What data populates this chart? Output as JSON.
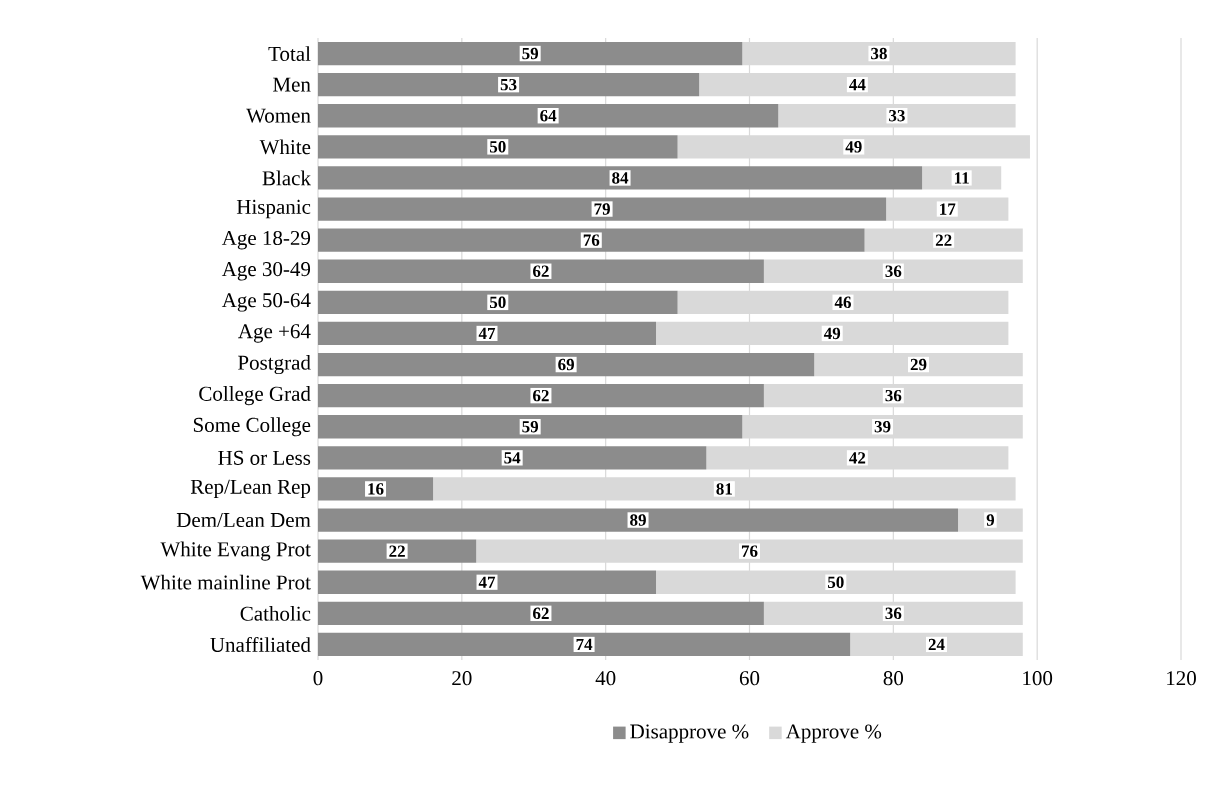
{
  "chart_data": {
    "type": "bar",
    "orientation": "horizontal",
    "stacked": true,
    "categories": [
      "Total",
      "Men",
      "Women",
      "White",
      "Black",
      "Hispanic",
      "Age 18-29",
      "Age 30-49",
      "Age 50-64",
      "Age +64",
      "Postgrad",
      "College Grad",
      "Some College",
      "HS or Less",
      "Rep/Lean Rep",
      "Dem/Lean Dem",
      "White Evang Prot",
      "White mainline Prot",
      "Catholic",
      "Unaffiliated"
    ],
    "series": [
      {
        "name": "Disapprove %",
        "color": "#8c8c8c",
        "values": [
          59,
          53,
          64,
          50,
          84,
          79,
          76,
          62,
          50,
          47,
          69,
          62,
          59,
          54,
          16,
          89,
          22,
          47,
          62,
          74
        ]
      },
      {
        "name": "Approve %",
        "color": "#d9d9d9",
        "values": [
          38,
          44,
          33,
          49,
          11,
          17,
          22,
          36,
          46,
          49,
          29,
          36,
          39,
          42,
          81,
          9,
          76,
          50,
          36,
          24
        ]
      }
    ],
    "xlim": [
      0,
      120
    ],
    "xticks": [
      0,
      20,
      40,
      60,
      80,
      100,
      120
    ],
    "grid": "x",
    "legend": "bottom",
    "data_labels": true
  }
}
